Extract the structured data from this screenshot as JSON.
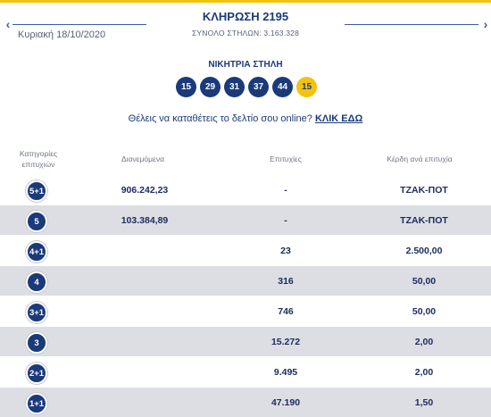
{
  "header": {
    "title": "ΚΛΗΡΩΣΗ 2195",
    "columns_total": "ΣΥΝΟΛΟ ΣΤΗΛΩΝ: 3.163.328",
    "date": "Κυριακή 18/10/2020",
    "prev_label": "‹",
    "next_label": "›"
  },
  "winning": {
    "title": "ΝΙΚΗΤΡΙΑ ΣΤΗΛΗ",
    "numbers": [
      "15",
      "29",
      "31",
      "37",
      "44"
    ],
    "joker": "15"
  },
  "online": {
    "question": "Θέλεις να καταθέτεις το δελτίο σου online?",
    "link_label": "ΚΛΙΚ ΕΔΩ"
  },
  "table": {
    "headers": {
      "category": "Κατηγορίες επιτυχιών",
      "distributed": "Διανεμόμενα",
      "winners": "Επιτυχίες",
      "prize": "Κέρδη ανά επιτυχία"
    },
    "rows": [
      {
        "category": "5+1",
        "distributed": "906.242,23",
        "winners": "-",
        "prize": "ΤΖΑΚ-ΠΟΤ"
      },
      {
        "category": "5",
        "distributed": "103.384,89",
        "winners": "-",
        "prize": "ΤΖΑΚ-ΠΟΤ"
      },
      {
        "category": "4+1",
        "distributed": "",
        "winners": "23",
        "prize": "2.500,00"
      },
      {
        "category": "4",
        "distributed": "",
        "winners": "316",
        "prize": "50,00"
      },
      {
        "category": "3+1",
        "distributed": "",
        "winners": "746",
        "prize": "50,00"
      },
      {
        "category": "3",
        "distributed": "",
        "winners": "15.272",
        "prize": "2,00"
      },
      {
        "category": "2+1",
        "distributed": "",
        "winners": "9.495",
        "prize": "2,00"
      },
      {
        "category": "1+1",
        "distributed": "",
        "winners": "47.190",
        "prize": "1,50"
      }
    ]
  },
  "colors": {
    "navy": "#1a3a7a",
    "gold": "#f2c40f",
    "row_grey": "#dcdee3"
  }
}
